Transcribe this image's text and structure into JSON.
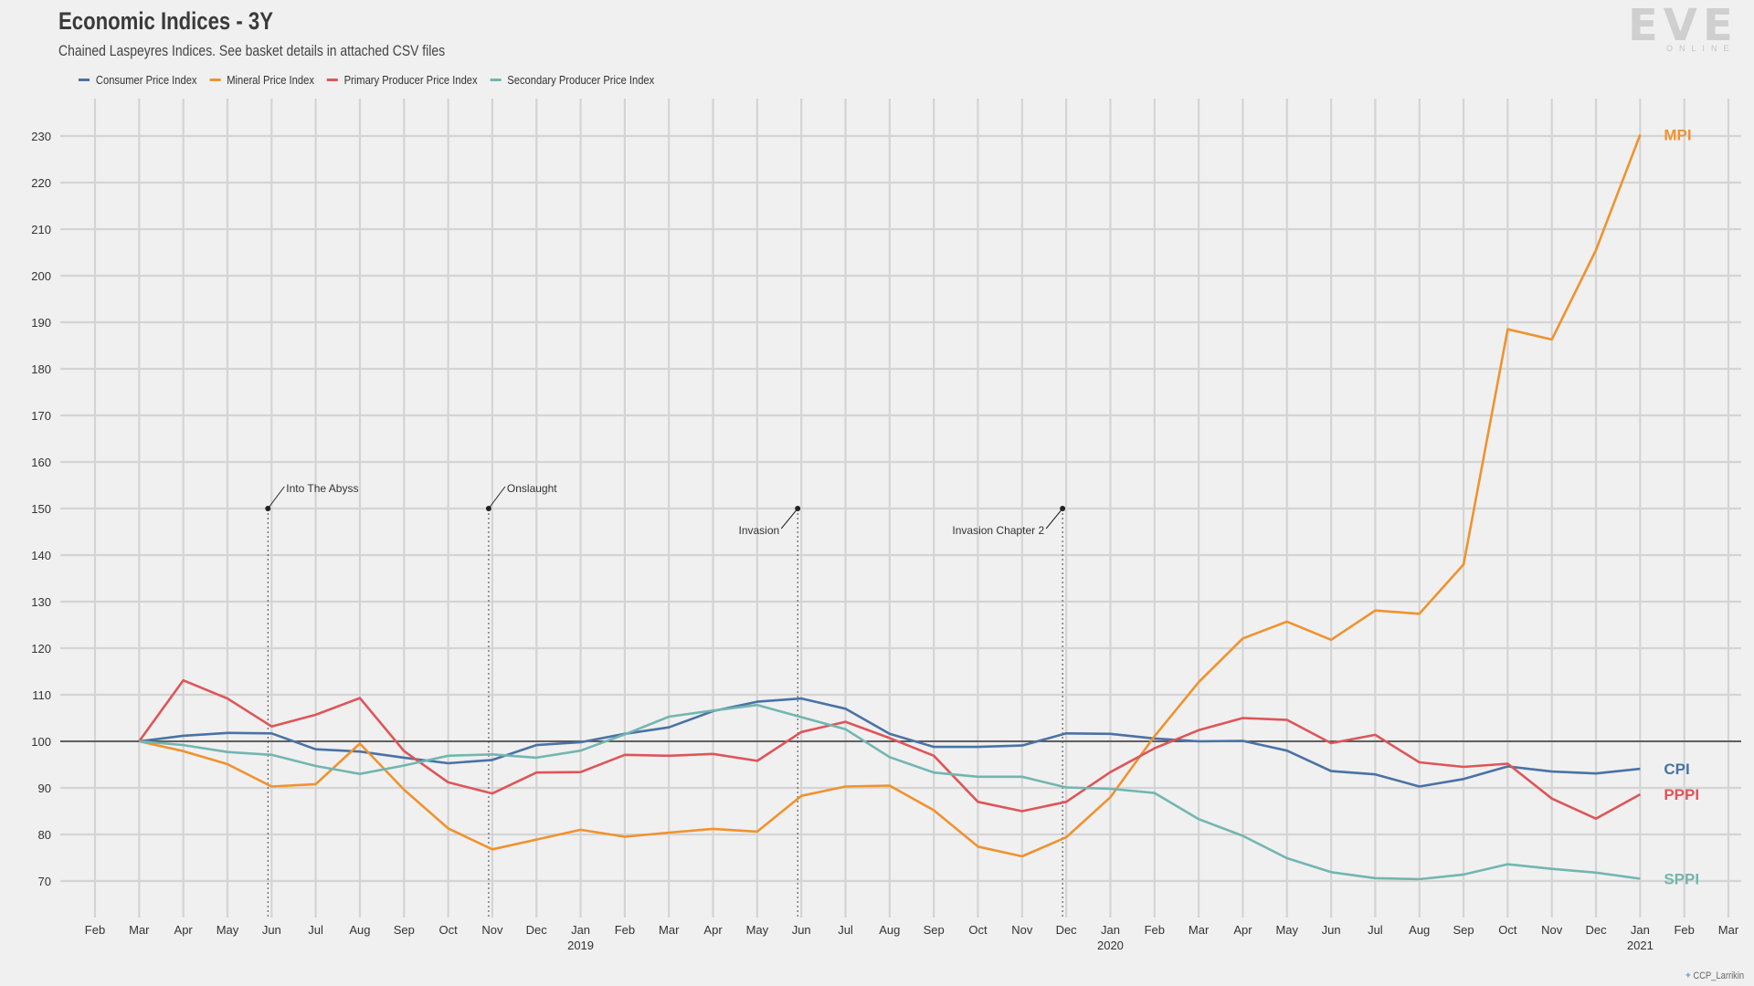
{
  "header": {
    "title": "Economic Indices - 3Y",
    "subtitle": "Chained Laspeyres Indices. See basket details in attached CSV files"
  },
  "logo": {
    "word": "EVE",
    "sub": "ONLINE"
  },
  "credit": {
    "handle": "CCP_Larrikin",
    "icon": "twitter-bird-icon"
  },
  "chart_data": {
    "type": "line",
    "title": "Economic Indices - 3Y",
    "subtitle": "Chained Laspeyres Indices. See basket details in attached CSV files",
    "grid": true,
    "legend_position": "top-left",
    "ylim": [
      62,
      240
    ],
    "yticks": [
      70,
      80,
      90,
      100,
      110,
      120,
      130,
      140,
      150,
      160,
      170,
      180,
      190,
      200,
      210,
      220,
      230
    ],
    "baseline": 100,
    "x_months": [
      "2018-02",
      "2018-03",
      "2018-04",
      "2018-05",
      "2018-06",
      "2018-07",
      "2018-08",
      "2018-09",
      "2018-10",
      "2018-11",
      "2018-12",
      "2019-01",
      "2019-02",
      "2019-03",
      "2019-04",
      "2019-05",
      "2019-06",
      "2019-07",
      "2019-08",
      "2019-09",
      "2019-10",
      "2019-11",
      "2019-12",
      "2020-01",
      "2020-02",
      "2020-03",
      "2020-04",
      "2020-05",
      "2020-06",
      "2020-07",
      "2020-08",
      "2020-09",
      "2020-10",
      "2020-11",
      "2020-12",
      "2021-01",
      "2021-02",
      "2021-03"
    ],
    "x_tick_labels": [
      "Feb",
      "Mar",
      "Apr",
      "May",
      "Jun",
      "Jul",
      "Aug",
      "Sep",
      "Oct",
      "Nov",
      "Dec",
      "Jan",
      "Feb",
      "Mar",
      "Apr",
      "May",
      "Jun",
      "Jul",
      "Aug",
      "Sep",
      "Oct",
      "Nov",
      "Dec",
      "Jan",
      "Feb",
      "Mar",
      "Apr",
      "May",
      "Jun",
      "Jul",
      "Aug",
      "Sep",
      "Oct",
      "Nov",
      "Dec",
      "Jan",
      "Feb",
      "Mar"
    ],
    "year_labels": [
      {
        "month": "2019-01",
        "label": "2019"
      },
      {
        "month": "2020-01",
        "label": "2020"
      },
      {
        "month": "2021-01",
        "label": "2021"
      }
    ],
    "data_months": [
      "2018-03",
      "2018-04",
      "2018-05",
      "2018-06",
      "2018-07",
      "2018-08",
      "2018-09",
      "2018-10",
      "2018-11",
      "2018-12",
      "2019-01",
      "2019-02",
      "2019-03",
      "2019-04",
      "2019-05",
      "2019-06",
      "2019-07",
      "2019-08",
      "2019-09",
      "2019-10",
      "2019-11",
      "2019-12",
      "2020-01",
      "2020-02",
      "2020-03",
      "2020-04",
      "2020-05",
      "2020-06",
      "2020-07",
      "2020-08",
      "2020-09",
      "2020-10",
      "2020-11",
      "2020-12",
      "2021-01"
    ],
    "series": [
      {
        "name": "Consumer Price Index",
        "end_label": "CPI",
        "color": "#4a72a5",
        "values": [
          100,
          101.2,
          101.8,
          101.7,
          98.3,
          97.8,
          96.5,
          95.3,
          96.0,
          99.2,
          99.8,
          101.6,
          103.0,
          106.5,
          108.5,
          109.2,
          107.0,
          101.6,
          98.8,
          98.8,
          99.1,
          101.7,
          101.6,
          100.6,
          100.0,
          100.1,
          98.0,
          93.6,
          92.9,
          90.3,
          91.9,
          94.6,
          93.5,
          93.1,
          94.1
        ]
      },
      {
        "name": "Mineral Price Index",
        "end_label": "MPI",
        "color": "#f0922e",
        "values": [
          100,
          97.9,
          95.1,
          90.3,
          90.8,
          99.5,
          89.6,
          81.3,
          76.8,
          78.9,
          81.0,
          79.5,
          80.4,
          81.2,
          80.6,
          88.3,
          90.3,
          90.5,
          85.2,
          77.4,
          75.3,
          79.4,
          88.0,
          101.1,
          112.7,
          122.1,
          125.7,
          121.8,
          128.1,
          127.4,
          138.0,
          188.5,
          186.3,
          205.5,
          230.3
        ]
      },
      {
        "name": "Primary Producer Price Index",
        "end_label": "PPPI",
        "color": "#de5558",
        "values": [
          100,
          113.1,
          109.2,
          103.2,
          105.7,
          109.3,
          97.9,
          91.2,
          88.8,
          93.3,
          93.4,
          97.1,
          96.9,
          97.3,
          95.8,
          102.0,
          104.2,
          100.7,
          96.9,
          87.0,
          85.0,
          87.0,
          93.4,
          98.5,
          102.4,
          105.0,
          104.6,
          99.6,
          101.4,
          95.5,
          94.5,
          95.2,
          87.7,
          83.4,
          88.6
        ]
      },
      {
        "name": "Secondary Producer Price Index",
        "end_label": "SPPI",
        "color": "#72b6b0",
        "values": [
          100,
          99.2,
          97.7,
          97.1,
          94.7,
          93.0,
          94.8,
          96.9,
          97.2,
          96.5,
          98.0,
          101.5,
          105.3,
          106.6,
          107.8,
          105.2,
          102.6,
          96.6,
          93.3,
          92.4,
          92.4,
          90.1,
          89.8,
          88.9,
          83.3,
          79.7,
          74.9,
          71.9,
          70.6,
          70.4,
          71.4,
          73.6,
          72.6,
          71.8,
          70.5
        ]
      }
    ],
    "annotations": [
      {
        "label": "Into The Abyss",
        "month": "2018-06",
        "y": 150,
        "label_side": "right"
      },
      {
        "label": "Onslaught",
        "month": "2018-11",
        "y": 150,
        "label_side": "right"
      },
      {
        "label": "Invasion",
        "month": "2019-06",
        "y": 150,
        "label_side": "left"
      },
      {
        "label": "Invasion Chapter 2",
        "month": "2019-12",
        "y": 150,
        "label_side": "left"
      }
    ]
  }
}
